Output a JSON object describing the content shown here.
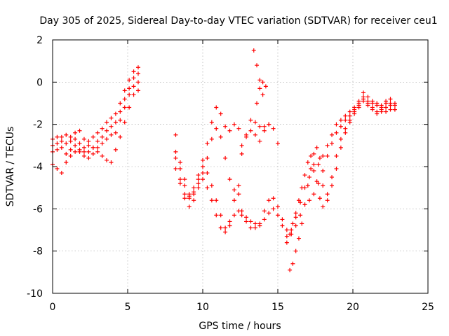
{
  "chart_data": {
    "type": "scatter",
    "title": "Day 305 of 2025, Sidereal Day-to-day VTEC variation (SDTVAR) for receiver ceu1",
    "xlabel": "GPS time / hours",
    "ylabel": "SDTVAR / TECUs",
    "xlim": [
      0,
      25
    ],
    "ylim": [
      -10,
      2
    ],
    "xticks": [
      0,
      5,
      10,
      15,
      20,
      25
    ],
    "yticks": [
      -10,
      -8,
      -6,
      -4,
      -2,
      0,
      2
    ],
    "xtick_labels": [
      "0",
      "5",
      "10",
      "15",
      "20",
      "25"
    ],
    "ytick_labels": [
      "-10",
      "-8",
      "-6",
      "-4",
      "-2",
      "0",
      "2"
    ],
    "grid": true,
    "marker": "+",
    "color": "#ff0000",
    "series": [
      {
        "name": "trace-1",
        "x": [
          0.0,
          0.3,
          0.6,
          0.9,
          1.2,
          1.5,
          1.8,
          2.1,
          2.4,
          2.7,
          3.0,
          3.3,
          3.6,
          3.9,
          4.2,
          4.5,
          4.8,
          5.1,
          5.4,
          5.7
        ],
        "y": [
          -2.7,
          -2.6,
          -2.6,
          -2.5,
          -2.6,
          -2.4,
          -2.3,
          -2.7,
          -2.8,
          -2.6,
          -2.4,
          -2.2,
          -1.9,
          -1.7,
          -1.5,
          -1.0,
          -0.4,
          0.1,
          0.5,
          0.7
        ]
      },
      {
        "name": "trace-2",
        "x": [
          0.0,
          0.3,
          0.6,
          0.9,
          1.2,
          1.5,
          1.8,
          2.1,
          2.4,
          2.7,
          3.0,
          3.3,
          3.6,
          3.9,
          4.2,
          4.5,
          4.8,
          5.1,
          5.4,
          5.7
        ],
        "y": [
          -3.0,
          -2.9,
          -2.8,
          -2.9,
          -2.8,
          -2.7,
          -2.9,
          -3.3,
          -3.3,
          -3.1,
          -2.8,
          -2.6,
          -2.3,
          -2.1,
          -1.9,
          -1.4,
          -0.8,
          -0.3,
          0.2,
          0.4
        ]
      },
      {
        "name": "trace-3",
        "x": [
          0.0,
          0.3,
          0.6,
          0.9,
          1.2,
          1.5,
          1.8,
          2.1,
          2.4,
          2.7,
          3.0,
          3.3,
          3.6,
          3.9,
          4.2,
          4.5,
          4.8,
          5.1,
          5.4,
          5.7
        ],
        "y": [
          -3.3,
          -3.2,
          -3.1,
          -3.4,
          -3.2,
          -3.0,
          -3.2,
          -3.5,
          -3.6,
          -3.4,
          -3.1,
          -2.9,
          -2.7,
          -2.5,
          -2.4,
          -1.8,
          -1.2,
          -0.6,
          -0.2,
          0.0
        ]
      },
      {
        "name": "trace-4",
        "x": [
          0.0,
          0.3,
          0.6,
          0.9,
          1.2,
          1.5,
          1.8,
          2.1,
          2.4,
          2.7,
          3.0,
          3.3,
          3.6,
          3.9,
          4.2,
          4.5,
          4.8,
          5.1,
          5.4,
          5.7
        ],
        "y": [
          -3.9,
          -4.1,
          -4.3,
          -3.8,
          -3.5,
          -3.3,
          -3.3,
          -3.1,
          -3.0,
          -3.1,
          -3.3,
          -3.5,
          -3.7,
          -3.8,
          -3.2,
          -2.6,
          -1.9,
          -1.2,
          -0.6,
          -0.4
        ]
      },
      {
        "name": "trace-5",
        "x": [
          8.2,
          8.5,
          8.8,
          9.1,
          9.4,
          9.7,
          10.0,
          10.3,
          10.6,
          10.9,
          11.2,
          11.5,
          11.8,
          12.1,
          12.4
        ],
        "y": [
          -2.5,
          -3.8,
          -4.6,
          -5.3,
          -5.0,
          -4.4,
          -3.7,
          -2.9,
          -1.9,
          -1.2,
          -1.5,
          -2.1,
          -2.3,
          -2.0,
          -2.2
        ]
      },
      {
        "name": "trace-6",
        "x": [
          8.2,
          8.5,
          8.8,
          9.1,
          9.4,
          9.7,
          10.0,
          10.3,
          10.6,
          10.9,
          11.2,
          11.5,
          11.8,
          12.1,
          12.4
        ],
        "y": [
          -3.3,
          -4.6,
          -5.3,
          -5.9,
          -5.6,
          -5.0,
          -4.3,
          -3.6,
          -2.7,
          -2.2,
          -2.6,
          -3.6,
          -4.6,
          -5.1,
          -5.3
        ]
      },
      {
        "name": "trace-7",
        "x": [
          8.2,
          8.5,
          8.8,
          9.1,
          9.4,
          9.7,
          10.0,
          10.3,
          10.6,
          10.9,
          11.2,
          11.5,
          11.8,
          12.1,
          12.4
        ],
        "y": [
          -4.1,
          -4.8,
          -5.5,
          -5.5,
          -5.2,
          -4.6,
          -4.0,
          -4.3,
          -4.9,
          -5.6,
          -6.3,
          -6.9,
          -6.8,
          -6.3,
          -6.1
        ]
      },
      {
        "name": "trace-8",
        "x": [
          8.2,
          8.5,
          8.8,
          9.1,
          9.4,
          9.7,
          10.0,
          10.3,
          10.6,
          10.9,
          11.2,
          11.5,
          11.8,
          12.1,
          12.4
        ],
        "y": [
          -3.6,
          -4.1,
          -4.9,
          -5.4,
          -5.3,
          -4.8,
          -4.6,
          -5.0,
          -5.6,
          -6.3,
          -6.9,
          -7.1,
          -6.6,
          -5.6,
          -4.9
        ]
      },
      {
        "name": "trace-9",
        "x": [
          12.6,
          12.9,
          13.2,
          13.5,
          13.8,
          14.1,
          14.4
        ],
        "y": [
          -3.0,
          -2.5,
          -1.8,
          -1.9,
          -2.1,
          -2.1,
          -2.0
        ]
      },
      {
        "name": "trace-10",
        "x": [
          12.6,
          12.9,
          13.2,
          13.5,
          13.8,
          14.1,
          14.4,
          14.7,
          15.0
        ],
        "y": [
          -3.4,
          -2.6,
          -2.3,
          -2.5,
          -2.8,
          -2.3,
          -2.0,
          -2.2,
          -2.9
        ]
      },
      {
        "name": "trace-11",
        "x": [
          13.4,
          13.6,
          13.8,
          14.0
        ],
        "y": [
          1.5,
          0.8,
          0.1,
          -0.6
        ]
      },
      {
        "name": "trace-12",
        "x": [
          13.6,
          13.8,
          14.0,
          14.2
        ],
        "y": [
          -1.0,
          -0.3,
          0.0,
          -0.2
        ]
      },
      {
        "name": "trace-13",
        "x": [
          12.6,
          12.9,
          13.2,
          13.5,
          13.8,
          14.1,
          14.4,
          14.7,
          15.0,
          15.3,
          15.6,
          15.9,
          16.2,
          16.5,
          16.8,
          17.1,
          17.4,
          17.7,
          18.0,
          18.3,
          18.6,
          18.9,
          19.2,
          19.5,
          19.8,
          20.1,
          20.4,
          20.7,
          21.0,
          21.3,
          21.6,
          21.9,
          22.2,
          22.5,
          22.8
        ],
        "y": [
          -6.1,
          -6.4,
          -6.6,
          -6.7,
          -6.8,
          -6.5,
          -6.2,
          -6.0,
          -6.3,
          -6.8,
          -7.3,
          -7.0,
          -6.4,
          -5.7,
          -5.0,
          -4.5,
          -4.2,
          -3.9,
          -3.5,
          -3.0,
          -2.5,
          -2.0,
          -1.8,
          -1.6,
          -1.4,
          -1.2,
          -0.9,
          -0.5,
          -0.7,
          -0.9,
          -1.0,
          -1.1,
          -0.9,
          -0.8,
          -1.0
        ]
      },
      {
        "name": "trace-14",
        "x": [
          12.6,
          12.9,
          13.2,
          13.5,
          13.8,
          14.1,
          14.4,
          14.7,
          15.0,
          15.3,
          15.6,
          15.9,
          16.2,
          16.5,
          16.8,
          17.1,
          17.4,
          17.7,
          18.0,
          18.3,
          18.6,
          18.9,
          19.2,
          19.5,
          19.8,
          20.1,
          20.4,
          20.7,
          21.0,
          21.3,
          21.6,
          21.9,
          22.2,
          22.5,
          22.8
        ],
        "y": [
          -6.3,
          -6.6,
          -6.9,
          -6.9,
          -6.7,
          -6.1,
          -5.6,
          -5.5,
          -5.9,
          -6.5,
          -7.0,
          -7.2,
          -6.8,
          -6.3,
          -5.8,
          -5.6,
          -5.3,
          -4.8,
          -4.2,
          -3.5,
          -2.9,
          -2.4,
          -2.1,
          -1.8,
          -1.6,
          -1.3,
          -1.0,
          -0.7,
          -0.9,
          -1.0,
          -1.1,
          -1.2,
          -1.0,
          -1.0,
          -1.1
        ]
      },
      {
        "name": "trace-15",
        "x": [
          15.6,
          15.8,
          16.0,
          16.2,
          16.4,
          16.6,
          16.8,
          17.0,
          17.2,
          17.4,
          17.6,
          17.8,
          18.0,
          18.3,
          18.6,
          18.9,
          19.2,
          19.5,
          19.8,
          20.1,
          20.4,
          20.7,
          21.0,
          21.3,
          21.6,
          21.9,
          22.2,
          22.5,
          22.8
        ],
        "y": [
          -7.6,
          -7.2,
          -6.7,
          -6.2,
          -5.6,
          -5.0,
          -4.4,
          -3.8,
          -3.5,
          -3.9,
          -4.7,
          -5.5,
          -5.9,
          -5.3,
          -4.5,
          -3.5,
          -2.7,
          -2.2,
          -1.8,
          -1.4,
          -1.1,
          -0.8,
          -1.0,
          -1.2,
          -1.4,
          -1.3,
          -1.2,
          -1.1,
          -1.3
        ]
      },
      {
        "name": "trace-16",
        "x": [
          15.8,
          16.0,
          16.2,
          16.4,
          16.6,
          16.8,
          17.0,
          17.2,
          17.4,
          17.6,
          17.8,
          18.0,
          18.3,
          18.6,
          18.9,
          19.2,
          19.5,
          19.8,
          20.1,
          20.4,
          20.7,
          21.0,
          21.3,
          21.6,
          21.9,
          22.2,
          22.5,
          22.8
        ],
        "y": [
          -8.9,
          -8.6,
          -8.0,
          -7.4,
          -6.7,
          -5.8,
          -4.9,
          -4.1,
          -3.4,
          -3.1,
          -3.6,
          -4.9,
          -5.6,
          -4.9,
          -4.1,
          -3.1,
          -2.4,
          -1.9,
          -1.5,
          -1.2,
          -0.9,
          -1.1,
          -1.3,
          -1.5,
          -1.4,
          -1.4,
          -1.3,
          -1.3
        ]
      }
    ]
  }
}
